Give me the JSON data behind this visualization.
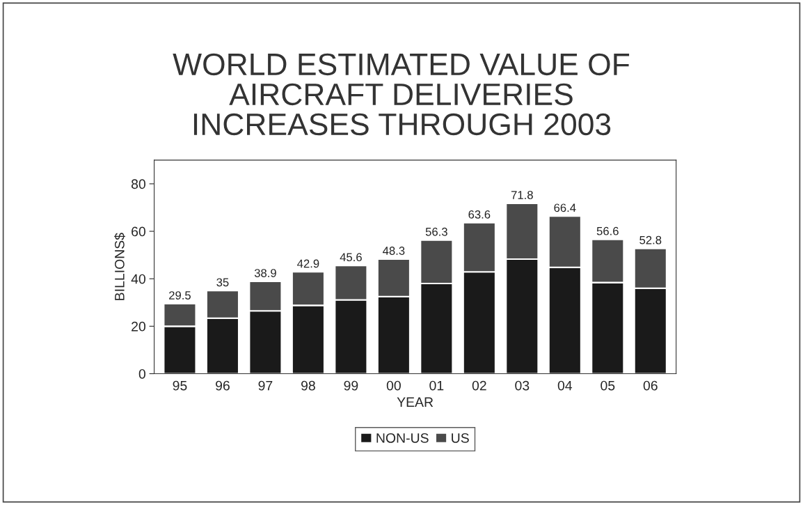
{
  "chart_data": {
    "type": "bar",
    "title": "WORLD ESTIMATED VALUE OF\nAIRCRAFT DELIVERIES\nINCREASES THROUGH 2003",
    "xlabel": "YEAR",
    "ylabel": "BILLIONS$",
    "categories": [
      "95",
      "96",
      "97",
      "98",
      "99",
      "00",
      "01",
      "02",
      "03",
      "04",
      "05",
      "06"
    ],
    "stacked": true,
    "series": [
      {
        "name": "NON-US",
        "color": "#1a1a1a",
        "values": [
          20.0,
          23.4,
          26.5,
          28.8,
          31.1,
          32.5,
          38.0,
          42.9,
          48.3,
          44.8,
          38.4,
          36.0
        ]
      },
      {
        "name": "US",
        "color": "#4a4a4a",
        "values": [
          9.5,
          11.6,
          12.4,
          14.1,
          14.5,
          15.8,
          18.3,
          20.7,
          23.5,
          21.6,
          18.2,
          16.8
        ]
      }
    ],
    "totals": [
      "29.5",
      "35",
      "38.9",
      "42.9",
      "45.6",
      "48.3",
      "56.3",
      "63.6",
      "71.8",
      "66.4",
      "56.6",
      "52.8"
    ],
    "ylim": [
      0,
      90
    ],
    "yticks": [
      0,
      20,
      40,
      60,
      80
    ],
    "grid": false,
    "legend": "bottom"
  }
}
